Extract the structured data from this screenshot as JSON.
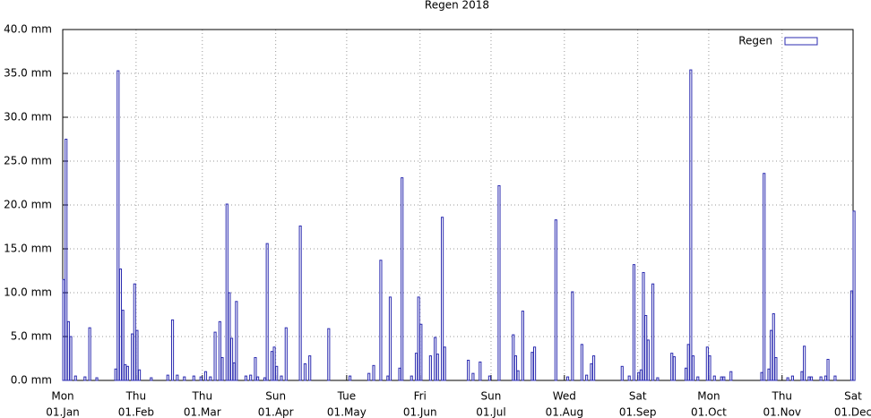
{
  "chart_data": {
    "type": "bar",
    "title": "Regen 2018",
    "x": [
      0,
      1,
      2,
      3,
      5,
      9,
      11,
      14,
      22,
      23,
      24,
      25,
      26,
      27,
      29,
      30,
      31,
      32,
      37,
      44,
      46,
      48,
      51,
      55,
      58,
      60,
      62,
      64,
      66,
      67,
      69,
      70,
      71,
      72,
      73,
      77,
      79,
      81,
      82,
      85,
      86,
      88,
      89,
      90,
      92,
      94,
      100,
      102,
      104,
      112,
      121,
      129,
      131,
      134,
      137,
      138,
      142,
      143,
      147,
      149,
      150,
      151,
      155,
      157,
      158,
      160,
      161,
      171,
      173,
      176,
      180,
      184,
      190,
      191,
      192,
      194,
      198,
      199,
      208,
      213,
      215,
      219,
      221,
      223,
      224,
      236,
      239,
      241,
      243,
      244,
      245,
      246,
      247,
      249,
      251,
      257,
      258,
      263,
      264,
      265,
      266,
      268,
      272,
      273,
      275,
      278,
      279,
      282,
      295,
      296,
      298,
      299,
      300,
      301,
      306,
      308,
      312,
      313,
      315,
      316,
      320,
      322,
      323,
      326,
      333,
      334
    ],
    "series": [
      {
        "name": "Regen",
        "color": "#2b2bb0",
        "values": [
          11.5,
          27.5,
          6.7,
          5.0,
          0.5,
          0.4,
          6.0,
          0.3,
          1.3,
          35.3,
          12.7,
          8.0,
          1.8,
          1.6,
          5.3,
          11.0,
          5.7,
          1.2,
          0.3,
          0.6,
          6.9,
          0.6,
          0.4,
          0.5,
          0.4,
          1.0,
          0.4,
          5.5,
          6.7,
          2.6,
          20.1,
          10.0,
          4.8,
          2.0,
          9.0,
          0.5,
          0.6,
          2.6,
          0.4,
          0.3,
          15.6,
          3.3,
          3.8,
          1.6,
          0.5,
          6.0,
          17.6,
          1.9,
          2.8,
          5.9,
          0.5,
          0.8,
          1.7,
          13.7,
          0.5,
          9.5,
          1.4,
          23.1,
          0.5,
          3.1,
          9.5,
          6.4,
          2.8,
          4.9,
          3.0,
          18.6,
          3.8,
          2.3,
          0.8,
          2.1,
          0.5,
          22.2,
          5.2,
          2.8,
          1.1,
          7.9,
          3.2,
          3.8,
          18.3,
          0.4,
          10.1,
          4.1,
          0.6,
          1.9,
          2.8,
          1.6,
          0.5,
          13.2,
          0.9,
          1.2,
          12.3,
          7.4,
          4.6,
          11.0,
          0.3,
          3.1,
          2.7,
          1.4,
          4.1,
          35.4,
          2.8,
          0.4,
          3.8,
          2.8,
          0.5,
          0.4,
          0.4,
          1.0,
          0.9,
          23.6,
          1.3,
          5.7,
          7.6,
          2.6,
          0.3,
          0.5,
          1.0,
          3.9,
          0.4,
          0.4,
          0.4,
          0.5,
          2.4,
          0.5,
          10.2,
          19.3
        ]
      }
    ],
    "xlim": [
      0,
      334
    ],
    "xticks": [
      {
        "value": 0,
        "label": "Mon",
        "sublabel": "01.Jan"
      },
      {
        "value": 31,
        "label": "Thu",
        "sublabel": "01.Feb"
      },
      {
        "value": 59,
        "label": "Thu",
        "sublabel": "01.Mar"
      },
      {
        "value": 90,
        "label": "Sun",
        "sublabel": "01.Apr"
      },
      {
        "value": 120,
        "label": "Tue",
        "sublabel": "01.May"
      },
      {
        "value": 151,
        "label": "Fri",
        "sublabel": "01.Jun"
      },
      {
        "value": 181,
        "label": "Sun",
        "sublabel": "01.Jul"
      },
      {
        "value": 212,
        "label": "Wed",
        "sublabel": "01.Aug"
      },
      {
        "value": 243,
        "label": "Sat",
        "sublabel": "01.Sep"
      },
      {
        "value": 273,
        "label": "Mon",
        "sublabel": "01.Oct"
      },
      {
        "value": 304,
        "label": "Thu",
        "sublabel": "01.Nov"
      },
      {
        "value": 334,
        "label": "Sat",
        "sublabel": "01.Dec"
      }
    ],
    "ylim": [
      0,
      40
    ],
    "yticks": [
      {
        "value": 0,
        "label": "0.0 mm"
      },
      {
        "value": 5,
        "label": "5.0 mm"
      },
      {
        "value": 10,
        "label": "10.0 mm"
      },
      {
        "value": 15,
        "label": "15.0 mm"
      },
      {
        "value": 20,
        "label": "20.0 mm"
      },
      {
        "value": 25,
        "label": "25.0 mm"
      },
      {
        "value": 30,
        "label": "30.0 mm"
      },
      {
        "value": 35,
        "label": "35.0 mm"
      },
      {
        "value": 40,
        "label": "40.0 mm"
      }
    ],
    "grid": true,
    "legend": "top-right"
  }
}
